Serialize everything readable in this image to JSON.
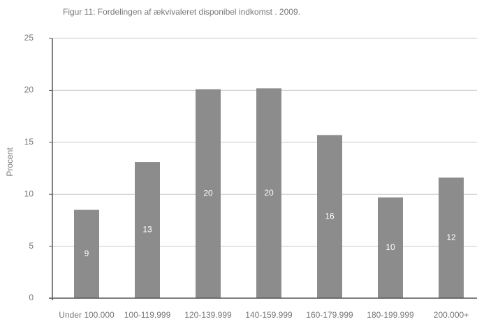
{
  "chart_data": {
    "type": "bar",
    "title": "Figur 11: Fordelingen af ækvivaleret disponibel indkomst . 2009.",
    "ylabel": "Procent",
    "categories": [
      "Under 100.000",
      "100-119.999",
      "120-139.999",
      "140-159.999",
      "160-179.999",
      "180-199.999",
      "200.000+"
    ],
    "values": [
      8.5,
      13.1,
      20.1,
      20.2,
      15.7,
      9.7,
      11.6
    ],
    "value_labels": [
      "9",
      "13",
      "20",
      "20",
      "16",
      "10",
      "12"
    ],
    "color": "#8c8c8c",
    "ylim": [
      0,
      25
    ],
    "yticks": [
      0,
      5,
      10,
      15,
      20,
      25
    ],
    "grid": true
  }
}
